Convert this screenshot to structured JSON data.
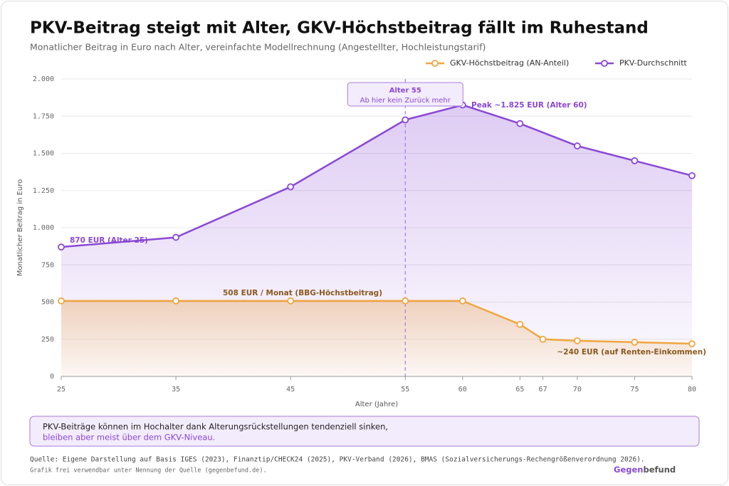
{
  "chart_data": {
    "type": "line",
    "title": "PKV-Beitrag steigt mit Alter, GKV-Höchstbeitrag fällt im Ruhestand",
    "subtitle": "Monatlicher Beitrag in Euro nach Alter, vereinfachte Modellrechnung (Angestellter, Hochleistungstarif)",
    "xlabel": "Alter (Jahre)",
    "ylabel": "Monatlicher Beitrag in Euro",
    "xlim": [
      25,
      80
    ],
    "xticks": [
      25,
      35,
      45,
      55,
      60,
      65,
      67,
      70,
      75,
      80
    ],
    "ylim": [
      0,
      2000
    ],
    "yticks": [
      0,
      250,
      500,
      750,
      {
        "value": 1000,
        "label": "1.000"
      },
      {
        "value": 1250,
        "label": "1.250"
      },
      {
        "value": 1500,
        "label": "1.500"
      },
      {
        "value": 1750,
        "label": "1.750"
      },
      {
        "value": 2000,
        "label": "2.000"
      }
    ],
    "grid": true,
    "legend": "top-right",
    "series": [
      {
        "name": "GKV-Höchstbeitrag (AN-Anteil)",
        "color": "#f0a640",
        "x": [
          25,
          35,
          45,
          55,
          60,
          65,
          67,
          70,
          75,
          80
        ],
        "values": [
          508,
          508,
          508,
          508,
          508,
          350,
          250,
          240,
          230,
          220
        ]
      },
      {
        "name": "PKV-Durchschnitt",
        "color": "#8a48d6",
        "x": [
          25,
          35,
          45,
          55,
          60,
          65,
          70,
          75,
          80
        ],
        "values": [
          870,
          935,
          1275,
          1725,
          1825,
          1700,
          1550,
          1450,
          1350
        ]
      }
    ],
    "vline": 55,
    "vline_label": [
      "Alter 55",
      "Ab hier kein Zurück mehr"
    ],
    "annotations": [
      "870 EUR (Alter 25)",
      "Peak ~1.825 EUR (Alter 60)",
      "508 EUR / Monat (BBG-Höchstbeitrag)",
      "~240 EUR (auf Renten-Einkommen)"
    ],
    "note": [
      "PKV-Beiträge können im Hochalter dank Alterungsrückstellungen tendenziell sinken,",
      "bleiben aber meist über dem GKV-Niveau."
    ],
    "source": "Quelle: Eigene Darstellung auf Basis IGES (2023), Finanztip/CHECK24 (2025), PKV-Verband (2026), BMAS (Sozialversicherungs-Rechengrößenverordnung 2026).",
    "credit": "Grafik frei verwendbar unter Nennung der Quelle (gegenbefund.de).",
    "brand": [
      "Gegen",
      "befund"
    ]
  }
}
